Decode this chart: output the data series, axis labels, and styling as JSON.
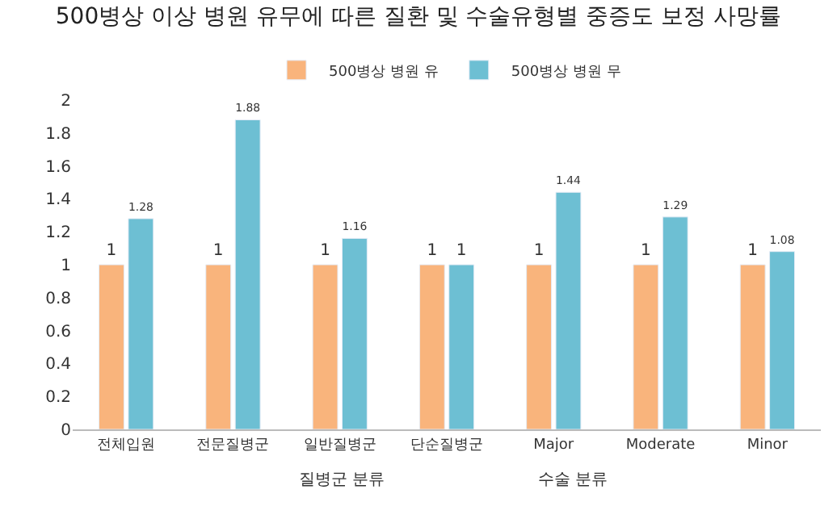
{
  "chart_data": {
    "type": "bar",
    "title": "500병상 이상 병원 유무에 따른 질환 및 수술유형별 중증도 보정 사망률",
    "categories": [
      "전체입원",
      "전문질병군",
      "일반질병군",
      "단순질병군",
      "Major",
      "Moderate",
      "Minor"
    ],
    "series": [
      {
        "name": "500병상 병원 유",
        "color": "#f9b47c",
        "values": [
          1,
          1,
          1,
          1,
          1,
          1,
          1
        ]
      },
      {
        "name": "500병상 병원 무",
        "color": "#6dbfd3",
        "values": [
          1.28,
          1.88,
          1.16,
          1,
          1.44,
          1.29,
          1.08
        ]
      }
    ],
    "ylim": [
      0,
      2
    ],
    "yticks": [
      0,
      0.2,
      0.4,
      0.6,
      0.8,
      1,
      1.2,
      1.4,
      1.6,
      1.8,
      2
    ],
    "data_labels": true,
    "legend": "top",
    "annotations": [
      "질병군 분류",
      "수술 분류"
    ]
  }
}
